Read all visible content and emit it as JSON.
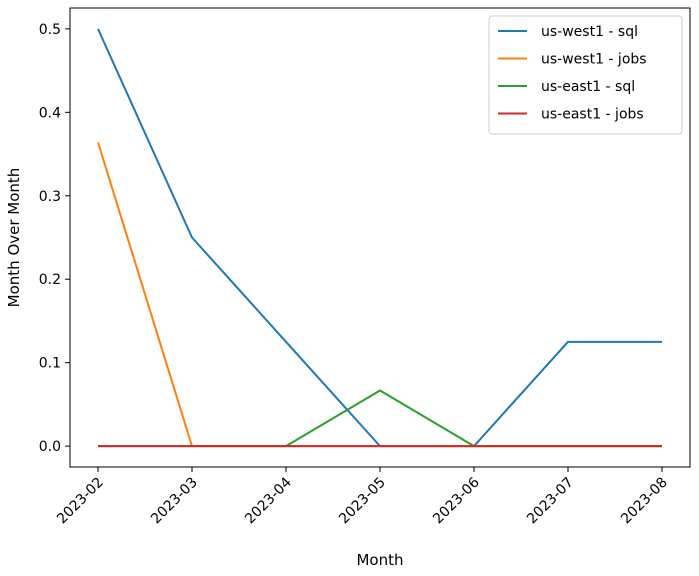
{
  "chart_data": {
    "type": "line",
    "title": "",
    "xlabel": "Month",
    "ylabel": "Month Over Month",
    "x": [
      "2023-02",
      "2023-03",
      "2023-04",
      "2023-05",
      "2023-06",
      "2023-07",
      "2023-08"
    ],
    "ylim": [
      -0.025,
      0.525
    ],
    "yticks": [
      0.0,
      0.1,
      0.2,
      0.3,
      0.4,
      0.5
    ],
    "ytick_labels": [
      "0.0",
      "0.1",
      "0.2",
      "0.3",
      "0.4",
      "0.5"
    ],
    "grid": false,
    "legend": "top-right",
    "series": [
      {
        "name": "us-west1 - sql",
        "color": "#1f77b4",
        "values": [
          0.5,
          0.25,
          0.125,
          0.0,
          0.0,
          0.125,
          0.125
        ]
      },
      {
        "name": "us-west1 - jobs",
        "color": "#ff7f0e",
        "values": [
          0.364,
          0.0,
          0.0,
          0.0,
          0.0,
          0.0,
          0.0
        ]
      },
      {
        "name": "us-east1 - sql",
        "color": "#2ca02c",
        "values": [
          0.0,
          0.0,
          0.0,
          0.0667,
          0.0,
          0.0,
          0.0
        ]
      },
      {
        "name": "us-east1 - jobs",
        "color": "#d62728",
        "values": [
          0.0,
          0.0,
          0.0,
          0.0,
          0.0,
          0.0,
          0.0
        ]
      }
    ]
  }
}
